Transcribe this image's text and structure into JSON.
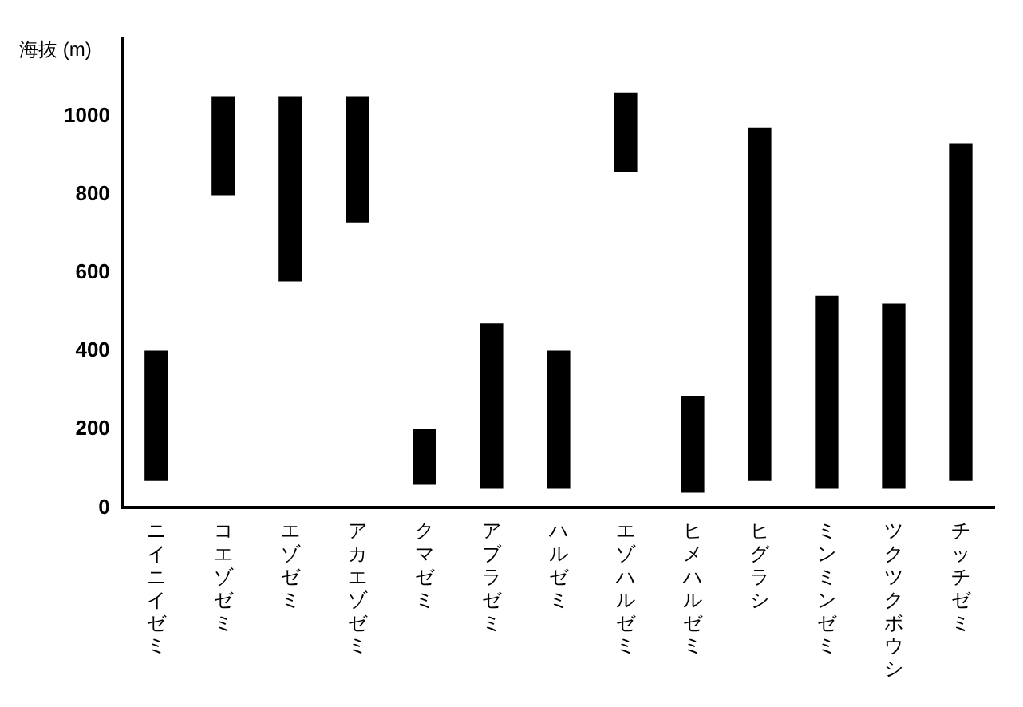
{
  "chart_data": {
    "type": "bar",
    "ylabel": "海抜 (m)",
    "categories": [
      "ニイニイゼミ",
      "コエゾゼミ",
      "エゾゼミ",
      "アカエゾゼミ",
      "クマゼミ",
      "アブラゼミ",
      "ハルゼミ",
      "エゾハルゼミ",
      "ヒメハルゼミ",
      "ヒグラシ",
      "ミンミンゼミ",
      "ツクツクボウシ",
      "チッチゼミ"
    ],
    "base": [
      70,
      800,
      580,
      730,
      60,
      50,
      50,
      860,
      40,
      70,
      50,
      50,
      70
    ],
    "values": [
      330,
      250,
      470,
      320,
      140,
      420,
      350,
      200,
      245,
      900,
      490,
      470,
      860
    ],
    "color": "#000000",
    "ylim": [
      0,
      1200
    ],
    "yticks": [
      0,
      200,
      400,
      600,
      800,
      1000
    ],
    "grid": false
  }
}
